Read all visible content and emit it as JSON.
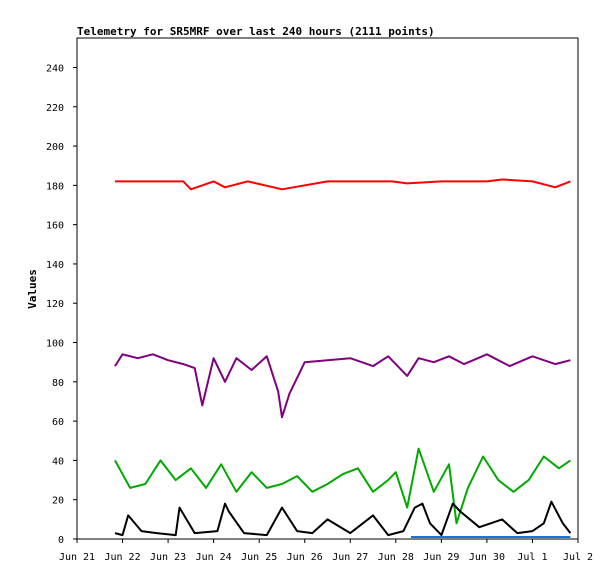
{
  "chart_data": {
    "type": "line",
    "title": "Telemetry for SR5MRF over last 240 hours (2111 points)",
    "xlabel": "",
    "ylabel": "Values",
    "ylim": [
      0,
      255
    ],
    "yticks": [
      0,
      20,
      40,
      60,
      80,
      100,
      120,
      140,
      160,
      180,
      200,
      220,
      240
    ],
    "x_range": [
      "2025-06-21T00:00",
      "2025-07-02T00:00"
    ],
    "x_ticks": [
      {
        "date": "2025-06-21",
        "label": "Jun 21"
      },
      {
        "date": "2025-06-22",
        "label": "Jun 22"
      },
      {
        "date": "2025-06-23",
        "label": "Jun 23"
      },
      {
        "date": "2025-06-24",
        "label": "Jun 24"
      },
      {
        "date": "2025-06-25",
        "label": "Jun 25"
      },
      {
        "date": "2025-06-26",
        "label": "Jun 26"
      },
      {
        "date": "2025-06-27",
        "label": "Jun 27"
      },
      {
        "date": "2025-06-28",
        "label": "Jun 28"
      },
      {
        "date": "2025-06-29",
        "label": "Jun 29"
      },
      {
        "date": "2025-06-30",
        "label": "Jun 30"
      },
      {
        "date": "2025-07-01",
        "label": "Jul 1"
      },
      {
        "date": "2025-07-02",
        "label": "Jul 2"
      }
    ],
    "grid": false,
    "legend": "none",
    "series": [
      {
        "color": "#ff0000",
        "x": [
          "2025-06-21T20:00",
          "2025-06-22T12:00",
          "2025-06-23T08:00",
          "2025-06-23T12:00",
          "2025-06-24T00:00",
          "2025-06-24T06:00",
          "2025-06-24T18:00",
          "2025-06-25T12:00",
          "2025-06-26T12:00",
          "2025-06-27T12:00",
          "2025-06-27T22:00",
          "2025-06-28T06:00",
          "2025-06-29T00:00",
          "2025-06-30T00:00",
          "2025-06-30T08:00",
          "2025-07-01T00:00",
          "2025-07-01T12:00",
          "2025-07-01T20:00"
        ],
        "y": [
          182,
          182,
          182,
          178,
          182,
          179,
          182,
          178,
          182,
          182,
          182,
          181,
          182,
          182,
          183,
          182,
          179,
          182
        ]
      },
      {
        "color": "#800080",
        "x": [
          "2025-06-21T20:00",
          "2025-06-22T00:00",
          "2025-06-22T08:00",
          "2025-06-22T16:00",
          "2025-06-23T00:00",
          "2025-06-23T08:00",
          "2025-06-23T14:00",
          "2025-06-23T18:00",
          "2025-06-24T00:00",
          "2025-06-24T06:00",
          "2025-06-24T12:00",
          "2025-06-24T20:00",
          "2025-06-25T04:00",
          "2025-06-25T10:00",
          "2025-06-25T12:00",
          "2025-06-25T16:00",
          "2025-06-26T00:00",
          "2025-06-26T12:00",
          "2025-06-27T00:00",
          "2025-06-27T12:00",
          "2025-06-27T20:00",
          "2025-06-28T06:00",
          "2025-06-28T12:00",
          "2025-06-28T20:00",
          "2025-06-29T04:00",
          "2025-06-29T12:00",
          "2025-06-30T00:00",
          "2025-06-30T12:00",
          "2025-07-01T00:00",
          "2025-07-01T12:00",
          "2025-07-01T20:00"
        ],
        "y": [
          88,
          94,
          92,
          94,
          91,
          89,
          87,
          68,
          92,
          80,
          92,
          86,
          93,
          75,
          62,
          74,
          90,
          91,
          92,
          88,
          93,
          83,
          92,
          90,
          93,
          89,
          94,
          88,
          93,
          89,
          91
        ]
      },
      {
        "color": "#00aa00",
        "x": [
          "2025-06-21T20:00",
          "2025-06-22T04:00",
          "2025-06-22T12:00",
          "2025-06-22T20:00",
          "2025-06-23T04:00",
          "2025-06-23T12:00",
          "2025-06-23T20:00",
          "2025-06-24T04:00",
          "2025-06-24T12:00",
          "2025-06-24T20:00",
          "2025-06-25T04:00",
          "2025-06-25T12:00",
          "2025-06-25T20:00",
          "2025-06-26T04:00",
          "2025-06-26T12:00",
          "2025-06-26T20:00",
          "2025-06-27T04:00",
          "2025-06-27T12:00",
          "2025-06-27T20:00",
          "2025-06-28T00:00",
          "2025-06-28T06:00",
          "2025-06-28T12:00",
          "2025-06-28T20:00",
          "2025-06-29T04:00",
          "2025-06-29T08:00",
          "2025-06-29T14:00",
          "2025-06-29T22:00",
          "2025-06-30T06:00",
          "2025-06-30T14:00",
          "2025-06-30T22:00",
          "2025-07-01T06:00",
          "2025-07-01T14:00",
          "2025-07-01T20:00"
        ],
        "y": [
          40,
          26,
          28,
          40,
          30,
          36,
          26,
          38,
          24,
          34,
          26,
          28,
          32,
          24,
          28,
          33,
          36,
          24,
          30,
          34,
          16,
          46,
          24,
          38,
          8,
          26,
          42,
          30,
          24,
          30,
          42,
          36,
          40
        ]
      },
      {
        "color": "#000000",
        "x": [
          "2025-06-21T20:00",
          "2025-06-22T00:00",
          "2025-06-22T03:00",
          "2025-06-22T10:00",
          "2025-06-22T18:00",
          "2025-06-23T04:00",
          "2025-06-23T06:00",
          "2025-06-23T14:00",
          "2025-06-24T02:00",
          "2025-06-24T06:00",
          "2025-06-24T08:00",
          "2025-06-24T16:00",
          "2025-06-25T04:00",
          "2025-06-25T12:00",
          "2025-06-25T20:00",
          "2025-06-26T04:00",
          "2025-06-26T12:00",
          "2025-06-27T00:00",
          "2025-06-27T12:00",
          "2025-06-27T20:00",
          "2025-06-28T04:00",
          "2025-06-28T10:00",
          "2025-06-28T14:00",
          "2025-06-28T18:00",
          "2025-06-29T00:00",
          "2025-06-29T06:00",
          "2025-06-29T10:00",
          "2025-06-29T20:00",
          "2025-06-30T08:00",
          "2025-06-30T16:00",
          "2025-07-01T00:00",
          "2025-07-01T06:00",
          "2025-07-01T10:00",
          "2025-07-01T16:00",
          "2025-07-01T20:00"
        ],
        "y": [
          3,
          2,
          12,
          4,
          3,
          2,
          16,
          3,
          4,
          18,
          14,
          3,
          2,
          16,
          4,
          3,
          10,
          3,
          12,
          2,
          4,
          16,
          18,
          8,
          2,
          18,
          14,
          6,
          10,
          3,
          4,
          8,
          19,
          8,
          3
        ]
      },
      {
        "color": "#1e73d8",
        "x": [
          "2025-06-28T08:00",
          "2025-06-29T00:00",
          "2025-06-30T00:00",
          "2025-07-01T00:00",
          "2025-07-01T20:00"
        ],
        "y": [
          1,
          1,
          1,
          1,
          1
        ]
      }
    ]
  }
}
